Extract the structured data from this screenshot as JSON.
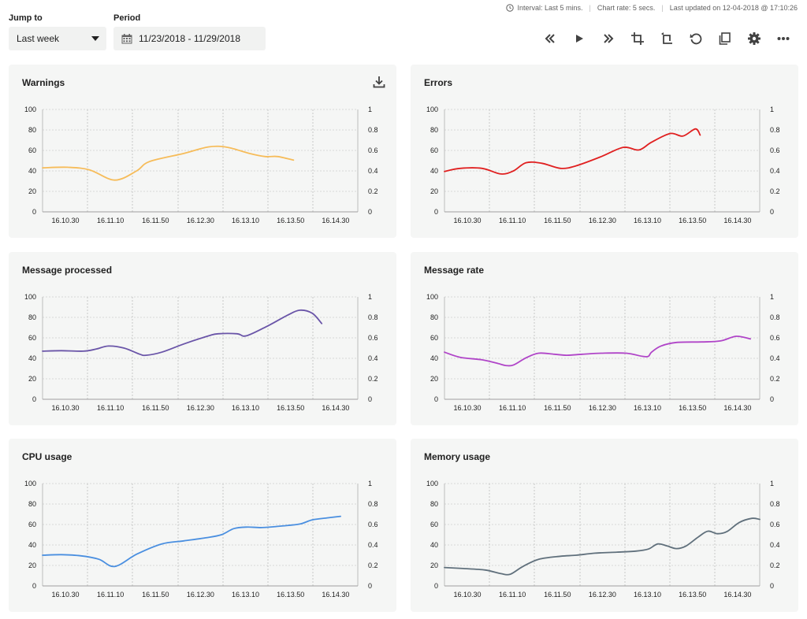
{
  "status": {
    "interval": "Interval: Last 5 mins.",
    "chart_rate": "Chart rate: 5 secs.",
    "last_updated": "Last updated on 12-04-2018 @ 17:10:26"
  },
  "controls": {
    "jump_to_label": "Jump to",
    "jump_to_value": "Last week",
    "period_label": "Period",
    "period_value": "11/23/2018 -  11/29/2018"
  },
  "toolbar": {
    "icons": [
      "rewind-icon",
      "play-icon",
      "fast-forward-icon",
      "crop-icon",
      "crop-rotate-icon",
      "refresh-icon",
      "copy-icon",
      "gear-icon",
      "more-icon"
    ]
  },
  "colors": {
    "warnings": "#f6bc5a",
    "errors": "#e02020",
    "message_processed": "#6a55a8",
    "message_rate": "#b045c8",
    "cpu_usage": "#4a8fe0",
    "memory_usage": "#60707c"
  },
  "panels": [
    {
      "title": "Warnings",
      "has_download": true
    },
    {
      "title": "Errors"
    },
    {
      "title": "Message processed"
    },
    {
      "title": "Message rate"
    },
    {
      "title": "CPU usage"
    },
    {
      "title": "Memory usage"
    }
  ],
  "chart_data": [
    {
      "type": "line",
      "x": [
        "16.10.30",
        "16.11.10",
        "16.11.50",
        "16.12.30",
        "16.13.10",
        "16.13.50",
        "16.14.30"
      ],
      "y_ticks_left": [
        "100",
        "80",
        "60",
        "40",
        "20",
        "0"
      ],
      "y_ticks_right": [
        "1",
        "0.8",
        "0.6",
        "0.4",
        "0.2",
        "0"
      ],
      "ylim": [
        0,
        100
      ],
      "grid": true,
      "series": [
        {
          "color": "#f6bc5a",
          "points": [
            [
              0,
              43
            ],
            [
              0.8,
              43.5
            ],
            [
              1.5,
              41
            ],
            [
              2.3,
              31
            ],
            [
              3.0,
              40
            ],
            [
              3.4,
              49
            ],
            [
              4.5,
              57
            ],
            [
              5.3,
              63.5
            ],
            [
              5.9,
              63
            ],
            [
              6.6,
              57
            ],
            [
              7.1,
              54
            ],
            [
              7.5,
              54
            ],
            [
              8.0,
              50.5
            ]
          ]
        }
      ]
    },
    {
      "type": "line",
      "x": [
        "16.10.30",
        "16.11.10",
        "16.11.50",
        "16.12.30",
        "16.13.10",
        "16.13.50",
        "16.14.30"
      ],
      "y_ticks_left": [
        "100",
        "80",
        "60",
        "40",
        "20",
        "0"
      ],
      "y_ticks_right": [
        "1",
        "0.8",
        "0.6",
        "0.4",
        "0.2",
        "0"
      ],
      "ylim": [
        0,
        100
      ],
      "grid": true,
      "series": [
        {
          "color": "#e02020",
          "points": [
            [
              0,
              39.5
            ],
            [
              0.5,
              42.5
            ],
            [
              1.2,
              42.5
            ],
            [
              1.8,
              37
            ],
            [
              2.2,
              40
            ],
            [
              2.6,
              48
            ],
            [
              3.1,
              47.5
            ],
            [
              3.7,
              42.5
            ],
            [
              4.2,
              45
            ],
            [
              5.0,
              54
            ],
            [
              5.7,
              63
            ],
            [
              6.2,
              60.5
            ],
            [
              6.6,
              68
            ],
            [
              7.2,
              76.5
            ],
            [
              7.6,
              74
            ],
            [
              8.0,
              81
            ],
            [
              8.15,
              75
            ]
          ]
        }
      ]
    },
    {
      "type": "line",
      "x": [
        "16.10.30",
        "16.11.10",
        "16.11.50",
        "16.12.30",
        "16.13.10",
        "16.13.50",
        "16.14.30"
      ],
      "y_ticks_left": [
        "100",
        "80",
        "60",
        "40",
        "20",
        "0"
      ],
      "y_ticks_right": [
        "1",
        "0.8",
        "0.6",
        "0.4",
        "0.2",
        "0"
      ],
      "ylim": [
        0,
        100
      ],
      "grid": true,
      "series": [
        {
          "color": "#6a55a8",
          "points": [
            [
              0,
              47
            ],
            [
              0.6,
              47.5
            ],
            [
              1.3,
              47
            ],
            [
              1.7,
              49
            ],
            [
              2.1,
              52
            ],
            [
              2.6,
              50
            ],
            [
              3.1,
              44
            ],
            [
              3.3,
              43
            ],
            [
              3.8,
              46
            ],
            [
              4.5,
              54
            ],
            [
              5.3,
              62
            ],
            [
              5.6,
              64
            ],
            [
              6.2,
              64
            ],
            [
              6.5,
              62
            ],
            [
              7.2,
              72
            ],
            [
              7.8,
              82
            ],
            [
              8.2,
              87
            ],
            [
              8.6,
              84
            ],
            [
              8.9,
              74
            ]
          ]
        }
      ]
    },
    {
      "type": "line",
      "x": [
        "16.10.30",
        "16.11.10",
        "16.11.50",
        "16.12.30",
        "16.13.10",
        "16.13.50",
        "16.14.30"
      ],
      "y_ticks_left": [
        "100",
        "80",
        "60",
        "40",
        "20",
        "0"
      ],
      "y_ticks_right": [
        "1",
        "0.8",
        "0.6",
        "0.4",
        "0.2",
        "0"
      ],
      "ylim": [
        0,
        100
      ],
      "grid": true,
      "series": [
        {
          "color": "#b045c8",
          "points": [
            [
              0,
              46
            ],
            [
              0.5,
              41
            ],
            [
              1.2,
              38.5
            ],
            [
              1.7,
              35
            ],
            [
              1.95,
              33
            ],
            [
              2.2,
              33.5
            ],
            [
              2.6,
              40.5
            ],
            [
              3.0,
              45
            ],
            [
              3.5,
              44
            ],
            [
              3.9,
              43
            ],
            [
              4.4,
              44
            ],
            [
              5.0,
              45
            ],
            [
              5.8,
              45
            ],
            [
              6.3,
              42
            ],
            [
              6.5,
              42
            ],
            [
              6.6,
              46
            ],
            [
              6.9,
              52
            ],
            [
              7.4,
              55.5
            ],
            [
              8.2,
              56
            ],
            [
              8.8,
              57
            ],
            [
              9.3,
              61.5
            ],
            [
              9.75,
              59
            ]
          ]
        }
      ]
    },
    {
      "type": "line",
      "x": [
        "16.10.30",
        "16.11.10",
        "16.11.50",
        "16.12.30",
        "16.13.10",
        "16.13.50",
        "16.14.30"
      ],
      "y_ticks_left": [
        "100",
        "80",
        "60",
        "40",
        "20",
        "0"
      ],
      "y_ticks_right": [
        "1",
        "0.8",
        "0.6",
        "0.4",
        "0.2",
        "0"
      ],
      "ylim": [
        0,
        100
      ],
      "grid": true,
      "series": [
        {
          "color": "#4a8fe0",
          "points": [
            [
              0,
              30
            ],
            [
              0.6,
              30.5
            ],
            [
              1.2,
              29.5
            ],
            [
              1.8,
              26
            ],
            [
              2.3,
              19
            ],
            [
              3.0,
              31
            ],
            [
              3.8,
              41
            ],
            [
              4.5,
              44
            ],
            [
              5.2,
              47
            ],
            [
              5.7,
              50
            ],
            [
              6.1,
              56
            ],
            [
              6.5,
              57.5
            ],
            [
              7.0,
              57
            ],
            [
              7.6,
              58.5
            ],
            [
              8.2,
              60.5
            ],
            [
              8.6,
              64.5
            ],
            [
              9.1,
              66.5
            ],
            [
              9.5,
              68
            ]
          ]
        }
      ]
    },
    {
      "type": "line",
      "x": [
        "16.10.30",
        "16.11.10",
        "16.11.50",
        "16.12.30",
        "16.13.10",
        "16.13.50",
        "16.14.30"
      ],
      "y_ticks_left": [
        "100",
        "80",
        "60",
        "40",
        "20",
        "0"
      ],
      "y_ticks_right": [
        "1",
        "0.8",
        "0.6",
        "0.4",
        "0.2",
        "0"
      ],
      "ylim": [
        0,
        100
      ],
      "grid": true,
      "series": [
        {
          "color": "#60707c",
          "points": [
            [
              0,
              18
            ],
            [
              0.6,
              17
            ],
            [
              1.3,
              15.5
            ],
            [
              1.8,
              12
            ],
            [
              2.1,
              11.5
            ],
            [
              2.5,
              19
            ],
            [
              3.0,
              26
            ],
            [
              3.7,
              29
            ],
            [
              4.2,
              30
            ],
            [
              4.8,
              32
            ],
            [
              5.5,
              33
            ],
            [
              6.1,
              34
            ],
            [
              6.5,
              36
            ],
            [
              6.8,
              41
            ],
            [
              7.1,
              39
            ],
            [
              7.4,
              36.5
            ],
            [
              7.7,
              39
            ],
            [
              8.1,
              48
            ],
            [
              8.4,
              53.5
            ],
            [
              8.7,
              51
            ],
            [
              9.0,
              53
            ],
            [
              9.4,
              62
            ],
            [
              9.8,
              66
            ],
            [
              10.05,
              65
            ]
          ]
        }
      ]
    }
  ]
}
